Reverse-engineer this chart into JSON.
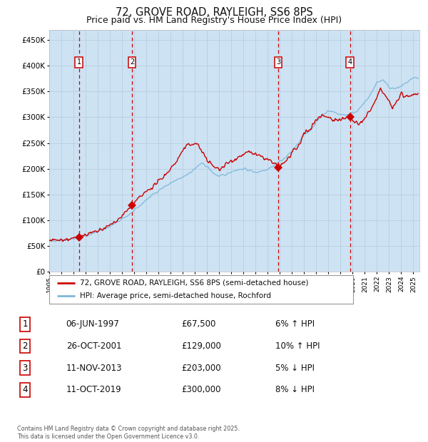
{
  "title": "72, GROVE ROAD, RAYLEIGH, SS6 8PS",
  "subtitle": "Price paid vs. HM Land Registry's House Price Index (HPI)",
  "ylim": [
    0,
    470000
  ],
  "yticks": [
    0,
    50000,
    100000,
    150000,
    200000,
    250000,
    300000,
    350000,
    400000,
    450000
  ],
  "ytick_labels": [
    "£0",
    "£50K",
    "£100K",
    "£150K",
    "£200K",
    "£250K",
    "£300K",
    "£350K",
    "£400K",
    "£450K"
  ],
  "xlim_start": 1995.0,
  "xlim_end": 2025.5,
  "x_year_start": 1995,
  "x_year_end": 2025,
  "hpi_color": "#7db8d8",
  "sale_color": "#cc0000",
  "background_color": "#ffffff",
  "plot_bg_color": "#ddeeff",
  "grid_color": "#b8cfe0",
  "sale_points": [
    {
      "year": 1997.44,
      "price": 67500,
      "label": "1"
    },
    {
      "year": 2001.82,
      "price": 129000,
      "label": "2"
    },
    {
      "year": 2013.86,
      "price": 203000,
      "label": "3"
    },
    {
      "year": 2019.78,
      "price": 300000,
      "label": "4"
    }
  ],
  "vline_color": "#cc0000",
  "shade_color": "#c5dcee",
  "table_entries": [
    {
      "num": "1",
      "date": "06-JUN-1997",
      "price": "£67,500",
      "hpi": "6% ↑ HPI"
    },
    {
      "num": "2",
      "date": "26-OCT-2001",
      "price": "£129,000",
      "hpi": "10% ↑ HPI"
    },
    {
      "num": "3",
      "date": "11-NOV-2013",
      "price": "£203,000",
      "hpi": "5% ↓ HPI"
    },
    {
      "num": "4",
      "date": "11-OCT-2019",
      "price": "£300,000",
      "hpi": "8% ↓ HPI"
    }
  ],
  "legend_line1": "72, GROVE ROAD, RAYLEIGH, SS6 8PS (semi-detached house)",
  "legend_line2": "HPI: Average price, semi-detached house, Rochford",
  "footnote": "Contains HM Land Registry data © Crown copyright and database right 2025.\nThis data is licensed under the Open Government Licence v3.0.",
  "title_fontsize": 10.5,
  "subtitle_fontsize": 9.0
}
